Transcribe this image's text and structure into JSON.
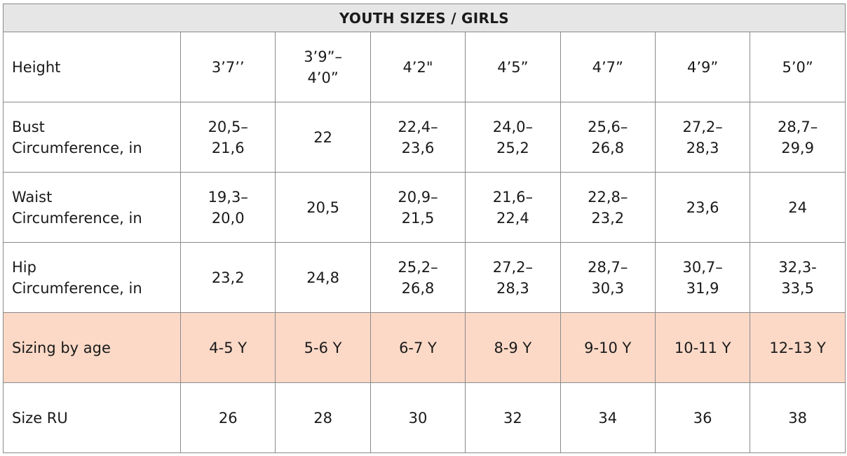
{
  "table": {
    "title": "YOUTH SIZES / GIRLS",
    "rows": [
      {
        "label": "Height",
        "cells": [
          "3’7’’",
          "3’9”–\n4’0”",
          "4’2\"",
          "4’5”",
          "4’7”",
          "4’9”",
          "5’0”"
        ]
      },
      {
        "label": "Bust\nCircumference, in",
        "cells": [
          "20,5–\n21,6",
          "22",
          "22,4–\n23,6",
          "24,0–\n25,2",
          "25,6–\n26,8",
          "27,2–\n28,3",
          "28,7–\n29,9"
        ]
      },
      {
        "label": "Waist\nCircumference, in",
        "cells": [
          "19,3–\n20,0",
          "20,5",
          "20,9–\n21,5",
          "21,6–\n22,4",
          "22,8–\n23,2",
          "23,6",
          "24"
        ]
      },
      {
        "label": "Hip\nCircumference, in",
        "cells": [
          "23,2",
          "24,8",
          "25,2–\n26,8",
          "27,2–\n28,3",
          "28,7–\n30,3",
          "30,7–\n31,9",
          "32,3-\n33,5"
        ]
      },
      {
        "label": "Sizing by age",
        "cells": [
          "4-5 Y",
          "5-6 Y",
          "6-7 Y",
          "8-9 Y",
          "9-10 Y",
          "10-11 Y",
          "12-13 Y"
        ]
      },
      {
        "label": "Size RU",
        "cells": [
          "26",
          "28",
          "30",
          "32",
          "34",
          "36",
          "38"
        ]
      }
    ]
  }
}
